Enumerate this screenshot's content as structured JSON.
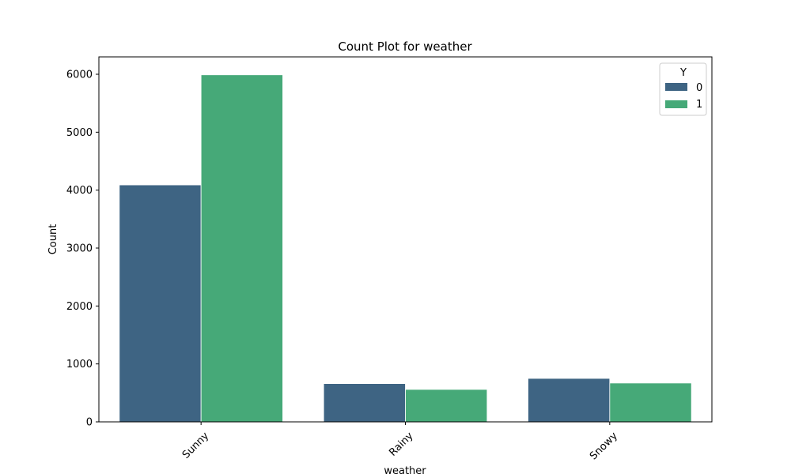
{
  "chart_data": {
    "type": "bar",
    "title": "Count Plot for weather",
    "xlabel": "weather",
    "ylabel": "Count",
    "categories": [
      "Sunny",
      "Rainy",
      "Snowy"
    ],
    "series": [
      {
        "name": "0",
        "values": [
          4090,
          660,
          750
        ],
        "color": "#3e6483"
      },
      {
        "name": "1",
        "values": [
          5990,
          560,
          670
        ],
        "color": "#46a978"
      }
    ],
    "ylim": [
      0,
      6300
    ],
    "yticks": [
      0,
      1000,
      2000,
      3000,
      4000,
      5000,
      6000
    ],
    "legend": {
      "title": "Y",
      "placement": "top-right"
    },
    "grid": false
  }
}
